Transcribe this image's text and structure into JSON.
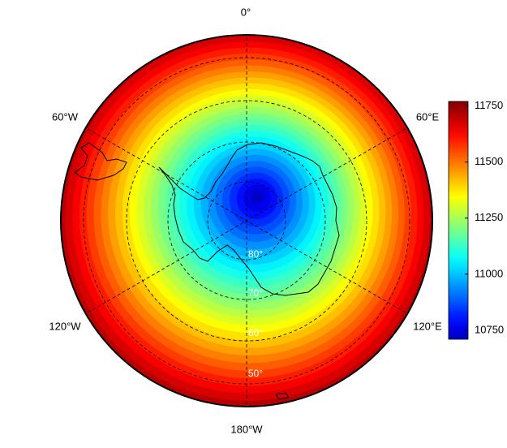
{
  "map": {
    "longitude_labels": [
      "0°",
      "60°E",
      "120°E",
      "180°W",
      "120°W",
      "60°W"
    ],
    "latitude_labels": [
      "80°",
      "70°",
      "60°",
      "50°"
    ],
    "colorbar": {
      "range": [
        10710,
        11770
      ],
      "ticks": [
        10750,
        11000,
        11250,
        11500,
        11750
      ]
    }
  }
}
